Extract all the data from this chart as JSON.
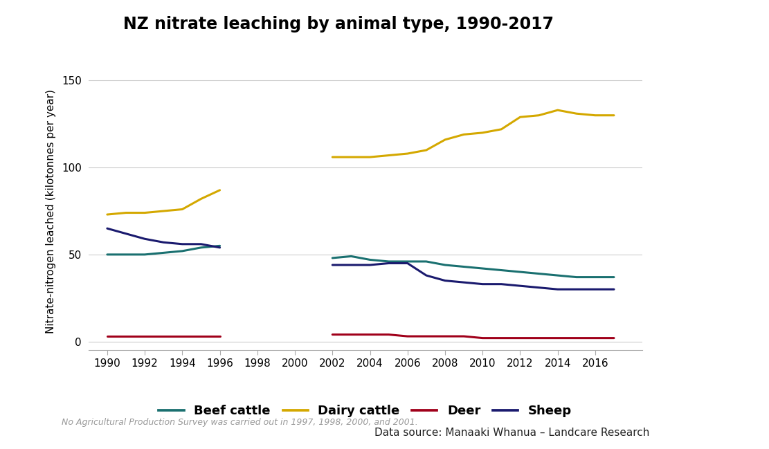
{
  "title": "NZ nitrate leaching by animal type, 1990-2017",
  "ylabel": "Nitrate-nitrogen leached (kilotonnes per year)",
  "ylim": [
    -5,
    155
  ],
  "yticks": [
    0,
    50,
    100,
    150
  ],
  "footnote": "No Agricultural Production Survey was carried out in 1997, 1998, 2000, and 2001.",
  "datasource": "Data source: Manaaki Whanua – Landcare Research",
  "beef_cattle": {
    "label": "Beef cattle",
    "color": "#1a7070",
    "years": [
      1990,
      1991,
      1992,
      1993,
      1994,
      1995,
      1996,
      2002,
      2003,
      2004,
      2005,
      2006,
      2007,
      2008,
      2009,
      2010,
      2011,
      2012,
      2013,
      2014,
      2015,
      2016,
      2017
    ],
    "values": [
      50,
      50,
      50,
      51,
      52,
      54,
      55,
      48,
      49,
      47,
      46,
      46,
      46,
      44,
      43,
      42,
      41,
      40,
      39,
      38,
      37,
      37,
      37
    ]
  },
  "dairy_cattle": {
    "label": "Dairy cattle",
    "color": "#d4a800",
    "years": [
      1990,
      1991,
      1992,
      1993,
      1994,
      1995,
      1996,
      2002,
      2003,
      2004,
      2005,
      2006,
      2007,
      2008,
      2009,
      2010,
      2011,
      2012,
      2013,
      2014,
      2015,
      2016,
      2017
    ],
    "values": [
      73,
      74,
      74,
      75,
      76,
      82,
      87,
      106,
      106,
      106,
      107,
      108,
      110,
      116,
      119,
      120,
      122,
      129,
      130,
      133,
      131,
      130,
      130
    ]
  },
  "deer": {
    "label": "Deer",
    "color": "#a0001a",
    "years": [
      1990,
      1991,
      1992,
      1993,
      1994,
      1995,
      1996,
      2002,
      2003,
      2004,
      2005,
      2006,
      2007,
      2008,
      2009,
      2010,
      2011,
      2012,
      2013,
      2014,
      2015,
      2016,
      2017
    ],
    "values": [
      3,
      3,
      3,
      3,
      3,
      3,
      3,
      4,
      4,
      4,
      4,
      3,
      3,
      3,
      3,
      2,
      2,
      2,
      2,
      2,
      2,
      2,
      2
    ]
  },
  "sheep": {
    "label": "Sheep",
    "color": "#1a1a6e",
    "years": [
      1990,
      1991,
      1992,
      1993,
      1994,
      1995,
      1996,
      2002,
      2003,
      2004,
      2005,
      2006,
      2007,
      2008,
      2009,
      2010,
      2011,
      2012,
      2013,
      2014,
      2015,
      2016,
      2017
    ],
    "values": [
      65,
      62,
      59,
      57,
      56,
      56,
      54,
      44,
      44,
      44,
      45,
      45,
      38,
      35,
      34,
      33,
      33,
      32,
      31,
      30,
      30,
      30,
      30
    ]
  },
  "xtick_years": [
    1990,
    1992,
    1994,
    1996,
    1998,
    2000,
    2002,
    2004,
    2006,
    2008,
    2010,
    2012,
    2014,
    2016
  ],
  "xlim_left": 1989.0,
  "xlim_right": 2018.5,
  "background_color": "#ffffff",
  "black_panel_color": "#000000",
  "grid_color": "#cccccc",
  "line_width": 2.2,
  "tick_color": "#aaaaaa",
  "spine_color": "#aaaaaa",
  "legend_fontsize": 13,
  "axis_fontsize": 11,
  "title_fontsize": 17,
  "footnote_fontsize": 9,
  "datasource_fontsize": 11
}
